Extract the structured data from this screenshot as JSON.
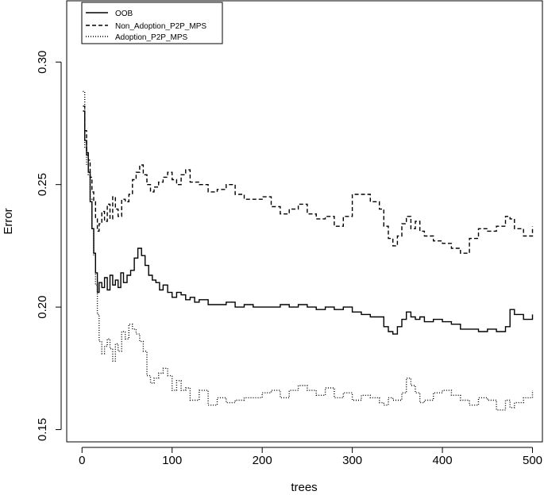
{
  "chart_data": {
    "type": "line",
    "xlabel": "trees",
    "ylabel": "Error",
    "xlim": [
      -17,
      511
    ],
    "ylim": [
      0.145,
      0.325
    ],
    "x_ticks": [
      0,
      100,
      200,
      300,
      400,
      500
    ],
    "x_tick_labels": [
      "0",
      "100",
      "200",
      "300",
      "400",
      "500"
    ],
    "y_ticks": [
      0.15,
      0.2,
      0.25,
      0.3
    ],
    "y_tick_labels": [
      "0.15",
      "0.20",
      "0.25",
      "0.30"
    ],
    "grid": false,
    "legend_position": "top-left",
    "series": [
      {
        "name": "OOB",
        "style": "solid",
        "color": "#000000",
        "x": [
          1,
          3,
          5,
          7,
          9,
          11,
          13,
          15,
          17,
          19,
          22,
          25,
          28,
          31,
          34,
          37,
          40,
          43,
          46,
          50,
          54,
          58,
          62,
          66,
          70,
          74,
          78,
          82,
          86,
          90,
          95,
          100,
          105,
          110,
          115,
          120,
          125,
          130,
          140,
          150,
          160,
          170,
          180,
          190,
          200,
          210,
          220,
          230,
          240,
          250,
          260,
          270,
          280,
          290,
          300,
          310,
          320,
          330,
          335,
          340,
          345,
          350,
          355,
          360,
          365,
          370,
          375,
          380,
          390,
          400,
          410,
          420,
          430,
          440,
          450,
          460,
          470,
          475,
          480,
          490,
          500
        ],
        "y": [
          0.28,
          0.268,
          0.262,
          0.255,
          0.243,
          0.232,
          0.222,
          0.214,
          0.206,
          0.21,
          0.208,
          0.212,
          0.207,
          0.213,
          0.209,
          0.211,
          0.208,
          0.214,
          0.21,
          0.213,
          0.215,
          0.22,
          0.224,
          0.221,
          0.217,
          0.213,
          0.211,
          0.21,
          0.207,
          0.209,
          0.206,
          0.204,
          0.206,
          0.205,
          0.203,
          0.204,
          0.202,
          0.203,
          0.201,
          0.201,
          0.202,
          0.2,
          0.201,
          0.2,
          0.2,
          0.2,
          0.201,
          0.2,
          0.201,
          0.2,
          0.199,
          0.2,
          0.199,
          0.2,
          0.198,
          0.197,
          0.196,
          0.196,
          0.192,
          0.19,
          0.189,
          0.192,
          0.195,
          0.198,
          0.196,
          0.195,
          0.196,
          0.194,
          0.195,
          0.194,
          0.193,
          0.191,
          0.191,
          0.19,
          0.191,
          0.19,
          0.192,
          0.199,
          0.197,
          0.195,
          0.197
        ]
      },
      {
        "name": "Non_Adoption_P2P_MPS",
        "style": "dashed",
        "color": "#000000",
        "x": [
          1,
          3,
          5,
          7,
          9,
          11,
          13,
          15,
          17,
          19,
          22,
          25,
          28,
          31,
          34,
          37,
          40,
          44,
          48,
          52,
          56,
          60,
          64,
          68,
          72,
          76,
          80,
          85,
          90,
          95,
          100,
          105,
          110,
          115,
          120,
          130,
          140,
          150,
          160,
          170,
          180,
          190,
          200,
          210,
          220,
          230,
          240,
          250,
          260,
          270,
          280,
          290,
          300,
          310,
          320,
          330,
          335,
          340,
          345,
          350,
          355,
          360,
          365,
          370,
          375,
          380,
          390,
          400,
          410,
          420,
          430,
          440,
          450,
          460,
          470,
          475,
          480,
          490,
          500
        ],
        "y": [
          0.282,
          0.272,
          0.263,
          0.26,
          0.253,
          0.247,
          0.243,
          0.236,
          0.231,
          0.234,
          0.239,
          0.235,
          0.242,
          0.236,
          0.245,
          0.24,
          0.237,
          0.244,
          0.243,
          0.246,
          0.252,
          0.255,
          0.258,
          0.254,
          0.25,
          0.247,
          0.249,
          0.251,
          0.253,
          0.255,
          0.252,
          0.25,
          0.254,
          0.256,
          0.251,
          0.25,
          0.247,
          0.248,
          0.25,
          0.246,
          0.244,
          0.244,
          0.245,
          0.241,
          0.238,
          0.24,
          0.242,
          0.238,
          0.236,
          0.237,
          0.233,
          0.237,
          0.246,
          0.246,
          0.243,
          0.24,
          0.233,
          0.228,
          0.225,
          0.229,
          0.234,
          0.237,
          0.232,
          0.235,
          0.231,
          0.229,
          0.227,
          0.226,
          0.224,
          0.222,
          0.228,
          0.232,
          0.231,
          0.233,
          0.237,
          0.236,
          0.232,
          0.229,
          0.233
        ]
      },
      {
        "name": "Adoption_P2P_MPS",
        "style": "dotted",
        "color": "#000000",
        "x": [
          1,
          3,
          5,
          7,
          9,
          11,
          13,
          15,
          17,
          19,
          22,
          25,
          28,
          31,
          34,
          37,
          40,
          44,
          48,
          52,
          56,
          60,
          64,
          68,
          72,
          76,
          80,
          85,
          90,
          95,
          100,
          105,
          110,
          115,
          120,
          130,
          140,
          150,
          160,
          170,
          180,
          190,
          200,
          210,
          220,
          230,
          240,
          250,
          260,
          270,
          280,
          290,
          300,
          310,
          320,
          330,
          335,
          340,
          345,
          350,
          355,
          360,
          365,
          370,
          375,
          380,
          390,
          400,
          410,
          420,
          430,
          440,
          450,
          460,
          470,
          475,
          480,
          490,
          500
        ],
        "y": [
          0.288,
          0.265,
          0.258,
          0.254,
          0.244,
          0.232,
          0.221,
          0.209,
          0.197,
          0.186,
          0.181,
          0.184,
          0.187,
          0.183,
          0.178,
          0.185,
          0.182,
          0.19,
          0.187,
          0.193,
          0.191,
          0.189,
          0.186,
          0.182,
          0.172,
          0.169,
          0.171,
          0.173,
          0.175,
          0.172,
          0.166,
          0.17,
          0.166,
          0.167,
          0.162,
          0.166,
          0.16,
          0.163,
          0.161,
          0.162,
          0.163,
          0.163,
          0.165,
          0.166,
          0.163,
          0.166,
          0.168,
          0.166,
          0.164,
          0.167,
          0.163,
          0.165,
          0.162,
          0.164,
          0.163,
          0.161,
          0.16,
          0.163,
          0.162,
          0.162,
          0.165,
          0.171,
          0.168,
          0.165,
          0.161,
          0.162,
          0.165,
          0.166,
          0.164,
          0.162,
          0.16,
          0.163,
          0.162,
          0.158,
          0.162,
          0.159,
          0.161,
          0.163,
          0.166
        ]
      }
    ]
  }
}
